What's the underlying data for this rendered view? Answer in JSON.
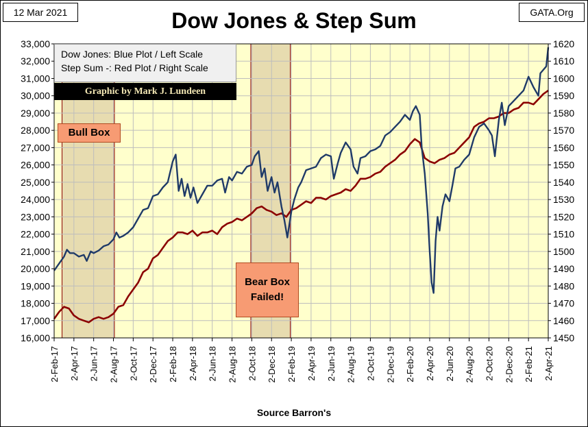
{
  "header": {
    "date": "12 Mar 2021",
    "site": "GATA.Org",
    "title": "Dow Jones & Step Sum"
  },
  "legend": {
    "line1": "Dow Jones: Blue Plot / Left Scale",
    "line2": "Step Sum -: Red Plot / Right Scale",
    "credit": "Graphic by Mark J. Lundeen"
  },
  "annotations": {
    "bull_box": "Bull Box",
    "bear_box_line1": "Bear Box",
    "bear_box_line2": "Failed!"
  },
  "footer": {
    "source": "Source Barron's"
  },
  "colors": {
    "plot_bg": "#ffffcc",
    "dow": "#1f3a68",
    "step": "#8b0000",
    "box_fill": "#e7dcb0",
    "label_fill": "#f79b73"
  },
  "chart_data": {
    "type": "line",
    "title": "Dow Jones & Step Sum",
    "xlabel": "Source Barron's",
    "x_ticks": [
      "2-Feb-17",
      "2-Apr-17",
      "2-Jun-17",
      "2-Aug-17",
      "2-Oct-17",
      "2-Dec-17",
      "2-Feb-18",
      "2-Apr-18",
      "2-Jun-18",
      "2-Aug-18",
      "2-Oct-18",
      "2-Dec-18",
      "2-Feb-19",
      "2-Apr-19",
      "2-Jun-19",
      "2-Aug-19",
      "2-Oct-19",
      "2-Dec-19",
      "2-Feb-20",
      "2-Apr-20",
      "2-Jun-20",
      "2-Aug-20",
      "2-Oct-20",
      "2-Dec-20",
      "2-Feb-21",
      "2-Apr-21"
    ],
    "x_range_months": [
      0,
      50
    ],
    "left_axis": {
      "min": 16000,
      "max": 33000,
      "step": 1000,
      "labels": [
        "16,000",
        "17,000",
        "18,000",
        "19,000",
        "20,000",
        "21,000",
        "22,000",
        "23,000",
        "24,000",
        "25,000",
        "26,000",
        "27,000",
        "28,000",
        "29,000",
        "30,000",
        "31,000",
        "32,000",
        "33,000"
      ]
    },
    "right_axis": {
      "min": 1450,
      "max": 1620,
      "step": 10,
      "labels": [
        "1450",
        "1460",
        "1470",
        "1480",
        "1490",
        "1500",
        "1510",
        "1520",
        "1530",
        "1540",
        "1550",
        "1560",
        "1570",
        "1580",
        "1590",
        "1600",
        "1610",
        "1620"
      ]
    },
    "shaded_boxes": [
      {
        "name": "Bull Box",
        "start_month": 0.8,
        "end_month": 6.1
      },
      {
        "name": "Bear Box Failed!",
        "start_month": 19.9,
        "end_month": 23.9
      }
    ],
    "series": [
      {
        "name": "Dow Jones",
        "axis": "left",
        "points": [
          [
            0,
            19890
          ],
          [
            0.5,
            20300
          ],
          [
            1,
            20700
          ],
          [
            1.3,
            21100
          ],
          [
            1.6,
            20900
          ],
          [
            2,
            20900
          ],
          [
            2.5,
            20700
          ],
          [
            3,
            20800
          ],
          [
            3.3,
            20450
          ],
          [
            3.7,
            21000
          ],
          [
            4,
            20900
          ],
          [
            4.5,
            21050
          ],
          [
            5,
            21300
          ],
          [
            5.5,
            21400
          ],
          [
            6,
            21700
          ],
          [
            6.3,
            22100
          ],
          [
            6.6,
            21800
          ],
          [
            7,
            21900
          ],
          [
            7.5,
            22100
          ],
          [
            8,
            22400
          ],
          [
            8.5,
            22900
          ],
          [
            9,
            23400
          ],
          [
            9.5,
            23500
          ],
          [
            10,
            24200
          ],
          [
            10.5,
            24300
          ],
          [
            11,
            24700
          ],
          [
            11.5,
            25000
          ],
          [
            12,
            26200
          ],
          [
            12.3,
            26600
          ],
          [
            12.6,
            24500
          ],
          [
            12.9,
            25200
          ],
          [
            13.2,
            24200
          ],
          [
            13.5,
            24900
          ],
          [
            13.8,
            24100
          ],
          [
            14.1,
            24700
          ],
          [
            14.5,
            23800
          ],
          [
            15,
            24300
          ],
          [
            15.5,
            24800
          ],
          [
            16,
            24800
          ],
          [
            16.5,
            25100
          ],
          [
            17,
            25200
          ],
          [
            17.3,
            24400
          ],
          [
            17.7,
            25300
          ],
          [
            18,
            25100
          ],
          [
            18.5,
            25600
          ],
          [
            19,
            25500
          ],
          [
            19.5,
            25900
          ],
          [
            20,
            26000
          ],
          [
            20.3,
            26500
          ],
          [
            20.7,
            26800
          ],
          [
            21,
            25300
          ],
          [
            21.3,
            25800
          ],
          [
            21.6,
            24500
          ],
          [
            22,
            25300
          ],
          [
            22.3,
            24400
          ],
          [
            22.6,
            25000
          ],
          [
            23,
            23600
          ],
          [
            23.3,
            22800
          ],
          [
            23.6,
            21800
          ],
          [
            24,
            23300
          ],
          [
            24.3,
            24000
          ],
          [
            24.7,
            24700
          ],
          [
            25,
            25000
          ],
          [
            25.5,
            25700
          ],
          [
            26,
            25800
          ],
          [
            26.5,
            25900
          ],
          [
            27,
            26400
          ],
          [
            27.5,
            26600
          ],
          [
            28,
            26500
          ],
          [
            28.3,
            25200
          ],
          [
            28.7,
            26100
          ],
          [
            29,
            26700
          ],
          [
            29.5,
            27300
          ],
          [
            30,
            26900
          ],
          [
            30.3,
            25900
          ],
          [
            30.7,
            25500
          ],
          [
            31,
            26400
          ],
          [
            31.5,
            26500
          ],
          [
            32,
            26800
          ],
          [
            32.5,
            26900
          ],
          [
            33,
            27100
          ],
          [
            33.5,
            27700
          ],
          [
            34,
            27900
          ],
          [
            34.5,
            28200
          ],
          [
            35,
            28500
          ],
          [
            35.5,
            28900
          ],
          [
            36,
            28600
          ],
          [
            36.3,
            29100
          ],
          [
            36.6,
            29400
          ],
          [
            37,
            28900
          ],
          [
            37.2,
            27000
          ],
          [
            37.5,
            25500
          ],
          [
            37.8,
            23200
          ],
          [
            38,
            21000
          ],
          [
            38.2,
            19200
          ],
          [
            38.4,
            18600
          ],
          [
            38.6,
            21600
          ],
          [
            38.8,
            23000
          ],
          [
            39,
            22200
          ],
          [
            39.3,
            23600
          ],
          [
            39.6,
            24300
          ],
          [
            40,
            23900
          ],
          [
            40.3,
            24800
          ],
          [
            40.6,
            25800
          ],
          [
            41,
            25900
          ],
          [
            41.5,
            26300
          ],
          [
            42,
            26600
          ],
          [
            42.5,
            27600
          ],
          [
            43,
            28200
          ],
          [
            43.5,
            28400
          ],
          [
            44,
            28000
          ],
          [
            44.3,
            27700
          ],
          [
            44.6,
            26500
          ],
          [
            45,
            28600
          ],
          [
            45.3,
            29600
          ],
          [
            45.6,
            28300
          ],
          [
            46,
            29400
          ],
          [
            46.5,
            29700
          ],
          [
            47,
            30000
          ],
          [
            47.5,
            30300
          ],
          [
            48,
            31100
          ],
          [
            48.5,
            30500
          ],
          [
            49,
            30000
          ],
          [
            49.2,
            31300
          ],
          [
            49.5,
            31500
          ],
          [
            49.8,
            31700
          ],
          [
            50,
            32800
          ]
        ]
      },
      {
        "name": "Step Sum",
        "axis": "right",
        "points": [
          [
            0,
            1461
          ],
          [
            0.5,
            1465
          ],
          [
            1,
            1468
          ],
          [
            1.5,
            1467
          ],
          [
            2,
            1463
          ],
          [
            2.5,
            1461
          ],
          [
            3,
            1460
          ],
          [
            3.5,
            1459
          ],
          [
            4,
            1461
          ],
          [
            4.5,
            1462
          ],
          [
            5,
            1461
          ],
          [
            5.5,
            1462
          ],
          [
            6,
            1464
          ],
          [
            6.5,
            1468
          ],
          [
            7,
            1469
          ],
          [
            7.5,
            1474
          ],
          [
            8,
            1478
          ],
          [
            8.5,
            1482
          ],
          [
            9,
            1488
          ],
          [
            9.5,
            1490
          ],
          [
            10,
            1496
          ],
          [
            10.5,
            1498
          ],
          [
            11,
            1502
          ],
          [
            11.5,
            1506
          ],
          [
            12,
            1508
          ],
          [
            12.5,
            1511
          ],
          [
            13,
            1511
          ],
          [
            13.5,
            1510
          ],
          [
            14,
            1512
          ],
          [
            14.5,
            1509
          ],
          [
            15,
            1511
          ],
          [
            15.5,
            1511
          ],
          [
            16,
            1512
          ],
          [
            16.5,
            1510
          ],
          [
            17,
            1514
          ],
          [
            17.5,
            1516
          ],
          [
            18,
            1517
          ],
          [
            18.5,
            1519
          ],
          [
            19,
            1518
          ],
          [
            19.5,
            1520
          ],
          [
            20,
            1522
          ],
          [
            20.5,
            1525
          ],
          [
            21,
            1526
          ],
          [
            21.5,
            1524
          ],
          [
            22,
            1523
          ],
          [
            22.5,
            1521
          ],
          [
            23,
            1522
          ],
          [
            23.5,
            1520
          ],
          [
            24,
            1524
          ],
          [
            24.5,
            1525
          ],
          [
            25,
            1527
          ],
          [
            25.5,
            1529
          ],
          [
            26,
            1528
          ],
          [
            26.5,
            1531
          ],
          [
            27,
            1531
          ],
          [
            27.5,
            1530
          ],
          [
            28,
            1532
          ],
          [
            28.5,
            1533
          ],
          [
            29,
            1534
          ],
          [
            29.5,
            1536
          ],
          [
            30,
            1535
          ],
          [
            30.5,
            1538
          ],
          [
            31,
            1542
          ],
          [
            31.5,
            1542
          ],
          [
            32,
            1543
          ],
          [
            32.5,
            1545
          ],
          [
            33,
            1546
          ],
          [
            33.5,
            1549
          ],
          [
            34,
            1551
          ],
          [
            34.5,
            1553
          ],
          [
            35,
            1556
          ],
          [
            35.5,
            1558
          ],
          [
            36,
            1562
          ],
          [
            36.5,
            1565
          ],
          [
            37,
            1563
          ],
          [
            37.5,
            1554
          ],
          [
            38,
            1552
          ],
          [
            38.5,
            1551
          ],
          [
            39,
            1553
          ],
          [
            39.5,
            1554
          ],
          [
            40,
            1556
          ],
          [
            40.5,
            1557
          ],
          [
            41,
            1560
          ],
          [
            41.5,
            1563
          ],
          [
            42,
            1566
          ],
          [
            42.5,
            1572
          ],
          [
            43,
            1574
          ],
          [
            43.5,
            1575
          ],
          [
            44,
            1577
          ],
          [
            44.5,
            1577
          ],
          [
            45,
            1578
          ],
          [
            45.5,
            1580
          ],
          [
            46,
            1580
          ],
          [
            46.5,
            1582
          ],
          [
            47,
            1583
          ],
          [
            47.5,
            1586
          ],
          [
            48,
            1586
          ],
          [
            48.5,
            1585
          ],
          [
            49,
            1588
          ],
          [
            49.5,
            1591
          ],
          [
            50,
            1593
          ]
        ]
      }
    ]
  }
}
